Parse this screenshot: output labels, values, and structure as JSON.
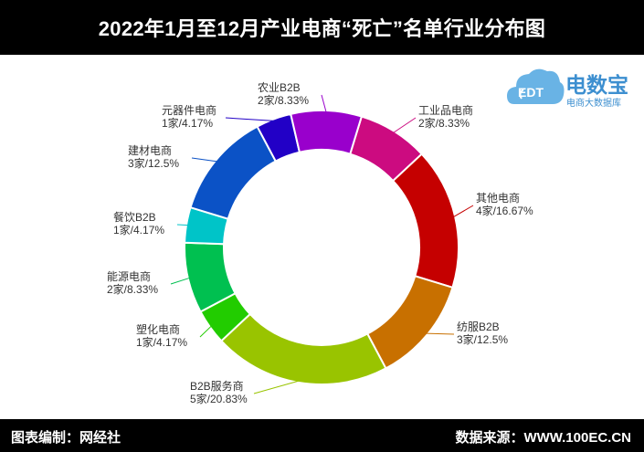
{
  "header": {
    "title": "2022年1月至12月产业电商“死亡”名单行业分布图"
  },
  "footer": {
    "left": "图表编制：网经社",
    "right": "数据来源：WWW.100EC.CN"
  },
  "logo": {
    "main": "电数宝",
    "sub": "电商大数据库",
    "badge": "EDT"
  },
  "chart_data": {
    "type": "pie",
    "donut": true,
    "unit": "家",
    "slices": [
      {
        "name": "工业品电商",
        "value": 2,
        "percent": "8.33%",
        "label": "2家/8.33%",
        "color": "#cc0b80"
      },
      {
        "name": "其他电商",
        "value": 4,
        "percent": "16.67%",
        "label": "4家/16.67%",
        "color": "#c50000"
      },
      {
        "name": "纺服B2B",
        "value": 3,
        "percent": "12.5%",
        "label": "3家/12.5%",
        "color": "#c87000"
      },
      {
        "name": "B2B服务商",
        "value": 5,
        "percent": "20.83%",
        "label": "5家/20.83%",
        "color": "#99c400"
      },
      {
        "name": "塑化电商",
        "value": 1,
        "percent": "4.17%",
        "label": "1家/4.17%",
        "color": "#22cc00"
      },
      {
        "name": "能源电商",
        "value": 2,
        "percent": "8.33%",
        "label": "2家/8.33%",
        "color": "#00c050"
      },
      {
        "name": "餐饮B2B",
        "value": 1,
        "percent": "4.17%",
        "label": "1家/4.17%",
        "color": "#00c4c8"
      },
      {
        "name": "建材电商",
        "value": 3,
        "percent": "12.5%",
        "label": "3家/12.5%",
        "color": "#0b52c6"
      },
      {
        "name": "元器件电商",
        "value": 1,
        "percent": "4.17%",
        "label": "1家/4.17%",
        "color": "#2200c6"
      },
      {
        "name": "农业B2B",
        "value": 2,
        "percent": "8.33%",
        "label": "2家/8.33%",
        "color": "#9900cc"
      }
    ]
  }
}
